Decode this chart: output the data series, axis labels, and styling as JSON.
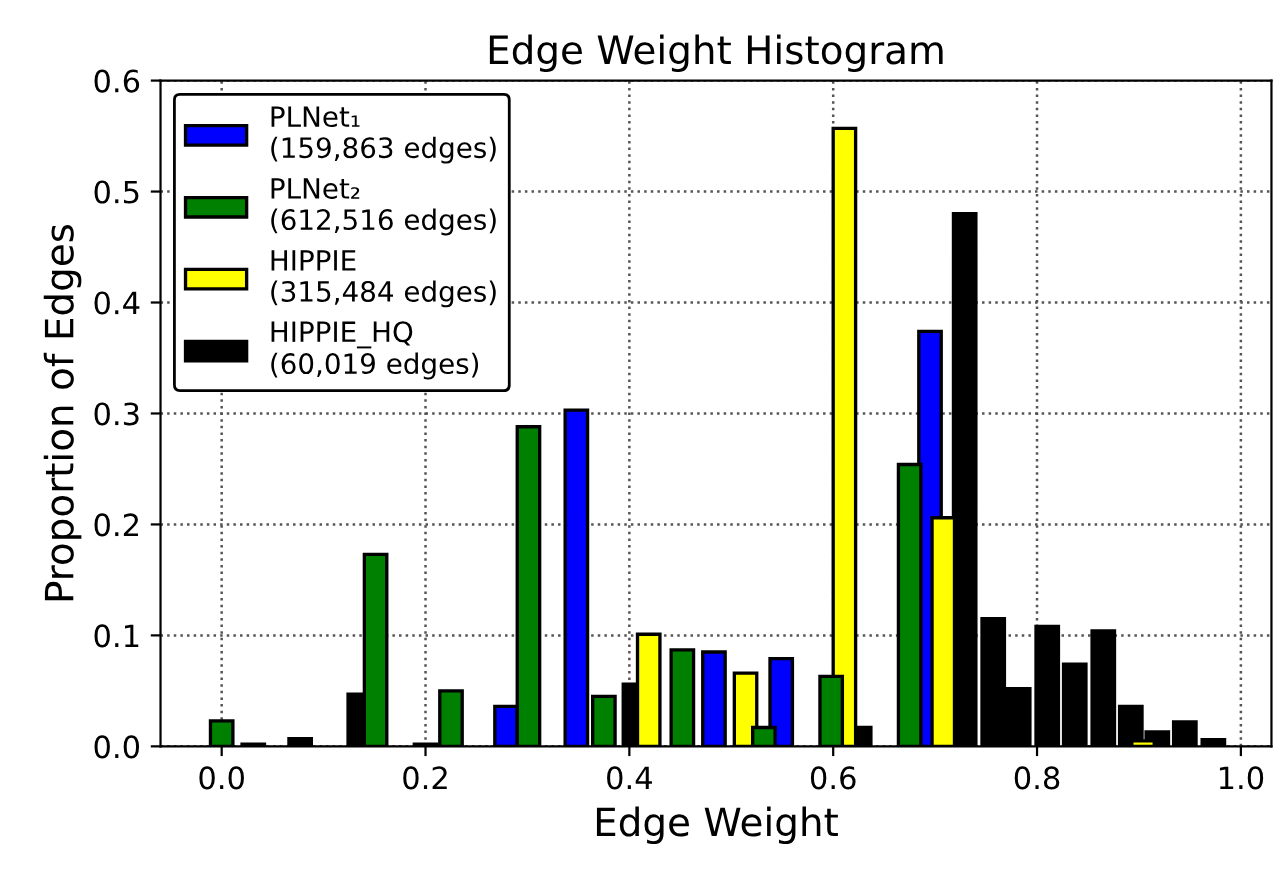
{
  "chart_data": {
    "type": "bar",
    "title": "Edge Weight Histogram",
    "xlabel": "Edge Weight",
    "ylabel": "Proportion of Edges",
    "xlim": [
      -0.06,
      1.03
    ],
    "ylim": [
      0,
      0.6
    ],
    "xticks": [
      {
        "value": 0,
        "label": "0.0"
      },
      {
        "value": 0.2,
        "label": "0.2"
      },
      {
        "value": 0.4,
        "label": "0.4"
      },
      {
        "value": 0.6,
        "label": "0.6"
      },
      {
        "value": 0.8,
        "label": "0.8"
      },
      {
        "value": 1.0,
        "label": "1.0"
      }
    ],
    "yticks": [
      {
        "value": 0,
        "label": "0.0"
      },
      {
        "value": 0.1,
        "label": "0.1"
      },
      {
        "value": 0.2,
        "label": "0.2"
      },
      {
        "value": 0.3,
        "label": "0.3"
      },
      {
        "value": 0.4,
        "label": "0.4"
      },
      {
        "value": 0.5,
        "label": "0.5"
      },
      {
        "value": 0.6,
        "label": "0.6"
      }
    ],
    "grid": true,
    "legend": "top left",
    "series": [
      {
        "name": "HIPPIE_HQ\n(60,019 edges)",
        "color": "#000000",
        "x": [
          0.031,
          0.077,
          0.135,
          0.2,
          0.405,
          0.626,
          0.729,
          0.757,
          0.782,
          0.81,
          0.837,
          0.865,
          0.892,
          0.918,
          0.945,
          0.973
        ],
        "values": [
          0.002,
          0.007,
          0.047,
          0.002,
          0.056,
          0.017,
          0.48,
          0.115,
          0.052,
          0.108,
          0.074,
          0.104,
          0.036,
          0.013,
          0.022,
          0.006
        ]
      },
      {
        "name": "PLNet₁\n(159,863 edges)",
        "color": "#0000ff",
        "x": [
          0.279,
          0.348,
          0.483,
          0.549,
          0.695
        ],
        "values": [
          0.036,
          0.303,
          0.085,
          0.079,
          0.374
        ]
      },
      {
        "name": "HIPPIE\n(315,484 edges)",
        "color": "#ffff00",
        "x": [
          0.419,
          0.514,
          0.611,
          0.708,
          0.904
        ],
        "values": [
          0.101,
          0.066,
          0.557,
          0.206,
          0.005
        ]
      },
      {
        "name": "PLNet₂\n(612,516 edges)",
        "color": "#008000",
        "x": [
          0.0,
          0.151,
          0.225,
          0.301,
          0.375,
          0.452,
          0.532,
          0.598,
          0.675
        ],
        "values": [
          0.023,
          0.173,
          0.05,
          0.288,
          0.045,
          0.087,
          0.017,
          0.063,
          0.254
        ]
      }
    ]
  }
}
